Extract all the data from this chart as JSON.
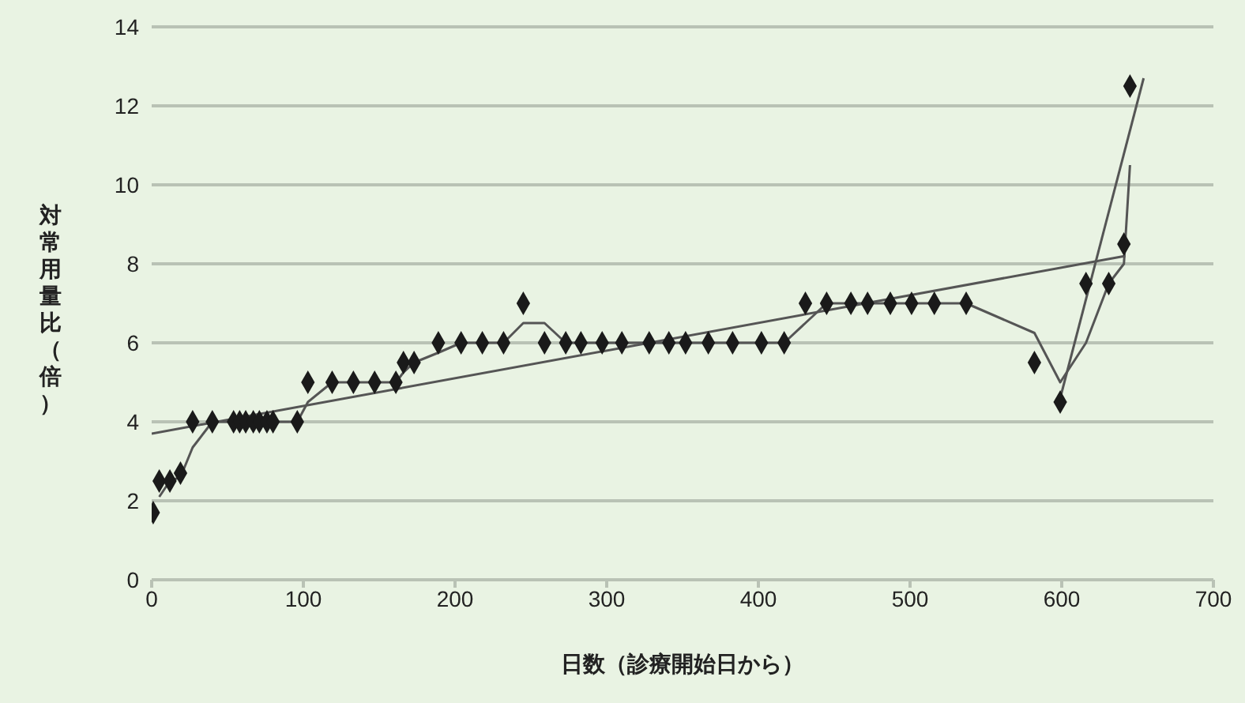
{
  "chart_data": {
    "type": "scatter",
    "xlabel": "日数（診療開始日から）",
    "ylabel": "対常用量比（倍）",
    "xlim": [
      0,
      700
    ],
    "xticks": [
      0,
      100,
      200,
      300,
      400,
      500,
      600,
      700
    ],
    "ylim": [
      0,
      14
    ],
    "yticks": [
      0,
      2,
      4,
      6,
      8,
      10,
      12,
      14
    ],
    "grid": "y",
    "line_style": "solid",
    "series": [
      {
        "marker": "diamond",
        "color": "#1a1a1a",
        "x": [
          1,
          5,
          12,
          19,
          27,
          40,
          54,
          58,
          62,
          67,
          71,
          76,
          80,
          96,
          103,
          119,
          133,
          147,
          161,
          166,
          173,
          189,
          204,
          218,
          232,
          245,
          259,
          273,
          283,
          297,
          310,
          328,
          341,
          352,
          367,
          383,
          402,
          417,
          431,
          445,
          461,
          472,
          487,
          501,
          516,
          537,
          582,
          599,
          616,
          631,
          641,
          645
        ],
        "values": [
          1.7,
          2.5,
          2.5,
          2.7,
          4,
          4,
          4,
          4,
          4,
          4,
          4,
          4,
          4,
          4,
          5,
          5,
          5,
          5,
          5,
          5.5,
          5.5,
          6,
          6,
          6,
          6,
          7,
          6,
          6,
          6,
          6,
          6,
          6,
          6,
          6,
          6,
          6,
          6,
          6,
          7,
          7,
          7,
          7,
          7,
          7,
          7,
          7,
          5.5,
          4.5,
          7.5,
          7.5,
          8.5,
          12.5
        ]
      },
      {
        "type": "line",
        "marker": "none",
        "color": "#555555",
        "x": [
          5,
          12,
          19,
          27,
          40,
          96,
          103,
          119,
          161,
          166,
          173,
          189,
          204,
          232,
          245,
          259,
          273,
          417,
          431,
          445,
          537,
          582,
          599,
          616,
          631,
          641,
          645
        ],
        "values": [
          2.1,
          2.5,
          2.6,
          3.35,
          4,
          4,
          4.5,
          5,
          5,
          5.25,
          5.5,
          5.75,
          6,
          6,
          6.5,
          6.5,
          6,
          6,
          6.5,
          7,
          7,
          6.25,
          5,
          6,
          7.5,
          8,
          10.5
        ]
      },
      {
        "type": "line",
        "marker": "none",
        "color": "#555555",
        "x": [
          0,
          642
        ],
        "values": [
          3.7,
          8.2
        ]
      },
      {
        "type": "line",
        "marker": "none",
        "color": "#555555",
        "x": [
          599,
          654
        ],
        "values": [
          4.6,
          12.7
        ]
      }
    ]
  }
}
